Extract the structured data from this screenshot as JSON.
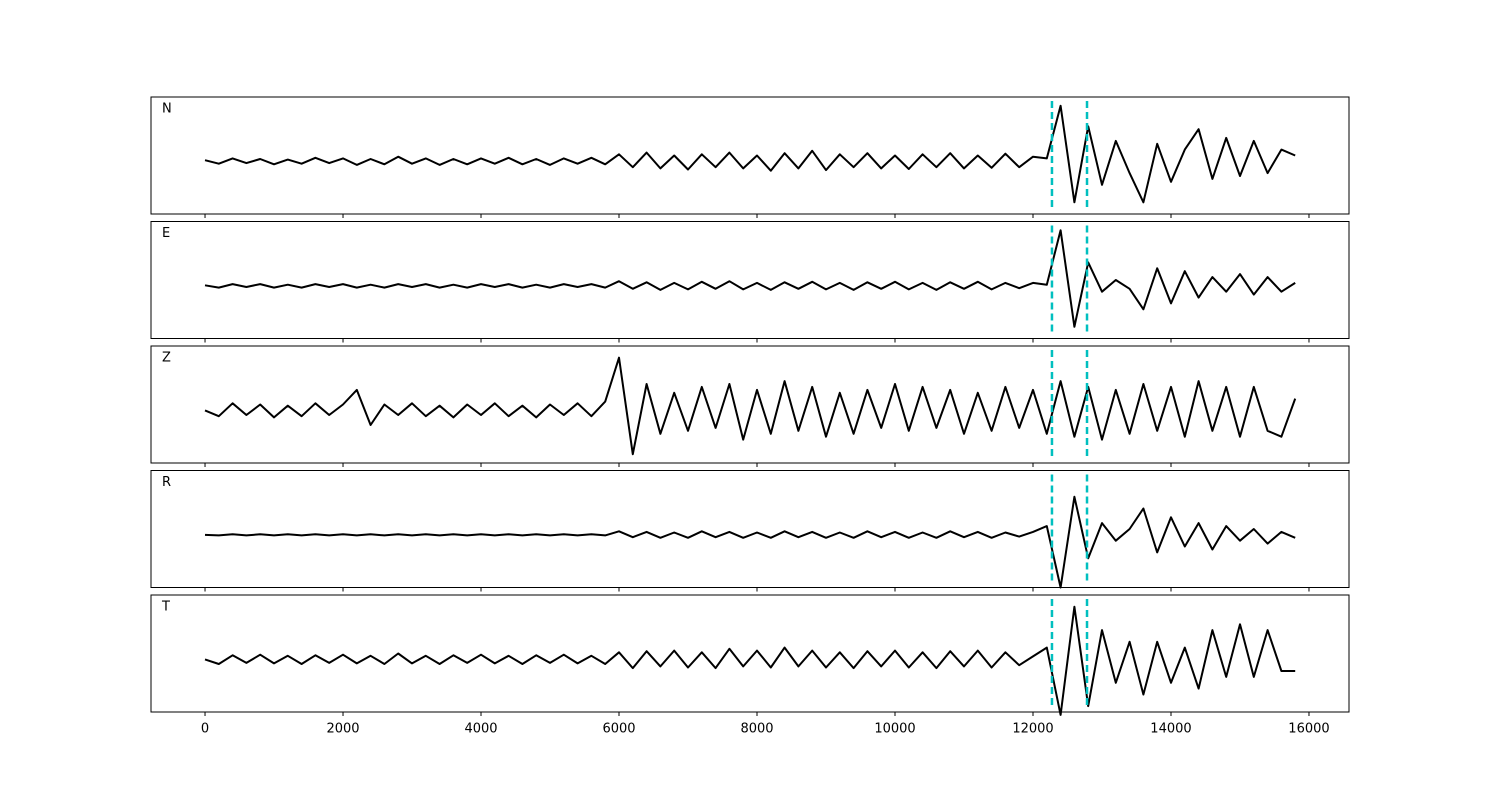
{
  "chart_data": {
    "type": "line",
    "x": [
      0,
      200,
      400,
      600,
      800,
      1000,
      1200,
      1400,
      1600,
      1800,
      2000,
      2200,
      2400,
      2600,
      2800,
      3000,
      3200,
      3400,
      3600,
      3800,
      4000,
      4200,
      4400,
      4600,
      4800,
      5000,
      5200,
      5400,
      5600,
      5800,
      6000,
      6200,
      6400,
      6600,
      6800,
      7000,
      7200,
      7400,
      7600,
      7800,
      8000,
      8200,
      8400,
      8600,
      8800,
      9000,
      9200,
      9400,
      9600,
      9800,
      10000,
      10200,
      10400,
      10600,
      10800,
      11000,
      11200,
      11400,
      11600,
      11800,
      12000,
      12200,
      12400,
      12600,
      12800,
      13000,
      13200,
      13400,
      13600,
      13800,
      14000,
      14200,
      14400,
      14600,
      14800,
      15000,
      15200,
      15400,
      15600,
      15800
    ],
    "series": [
      {
        "name": "N",
        "color": "#000000",
        "values": [
          0.02,
          -0.04,
          0.05,
          -0.03,
          0.04,
          -0.05,
          0.03,
          -0.04,
          0.06,
          -0.03,
          0.05,
          -0.06,
          0.04,
          -0.05,
          0.08,
          -0.04,
          0.05,
          -0.06,
          0.04,
          -0.05,
          0.05,
          -0.04,
          0.06,
          -0.05,
          0.04,
          -0.06,
          0.05,
          -0.04,
          0.06,
          -0.05,
          0.12,
          -0.1,
          0.15,
          -0.12,
          0.1,
          -0.14,
          0.12,
          -0.1,
          0.15,
          -0.12,
          0.1,
          -0.16,
          0.14,
          -0.12,
          0.18,
          -0.15,
          0.12,
          -0.1,
          0.14,
          -0.12,
          0.1,
          -0.13,
          0.12,
          -0.1,
          0.14,
          -0.12,
          0.1,
          -0.11,
          0.13,
          -0.1,
          0.08,
          0.05,
          0.95,
          -0.7,
          0.6,
          -0.4,
          0.35,
          -0.2,
          -0.7,
          0.3,
          -0.35,
          0.2,
          0.55,
          -0.3,
          0.4,
          -0.25,
          0.35,
          -0.2,
          0.2,
          0.1
        ]
      },
      {
        "name": "E",
        "color": "#000000",
        "values": [
          0.01,
          -0.03,
          0.03,
          -0.02,
          0.03,
          -0.03,
          0.02,
          -0.03,
          0.03,
          -0.02,
          0.03,
          -0.03,
          0.02,
          -0.03,
          0.03,
          -0.02,
          0.03,
          -0.03,
          0.02,
          -0.03,
          0.03,
          -0.02,
          0.03,
          -0.03,
          0.02,
          -0.03,
          0.03,
          -0.02,
          0.03,
          -0.03,
          0.08,
          -0.05,
          0.06,
          -0.07,
          0.05,
          -0.06,
          0.07,
          -0.05,
          0.08,
          -0.06,
          0.05,
          -0.07,
          0.06,
          -0.05,
          0.07,
          -0.06,
          0.05,
          -0.07,
          0.06,
          -0.05,
          0.07,
          -0.06,
          0.05,
          -0.07,
          0.06,
          -0.05,
          0.07,
          -0.06,
          0.05,
          -0.04,
          0.05,
          0.02,
          0.95,
          -0.7,
          0.4,
          -0.1,
          0.1,
          -0.05,
          -0.4,
          0.3,
          -0.3,
          0.25,
          -0.2,
          0.15,
          -0.1,
          0.2,
          -0.15,
          0.15,
          -0.1,
          0.05
        ]
      },
      {
        "name": "Z",
        "color": "#000000",
        "values": [
          0.0,
          -0.1,
          0.12,
          -0.08,
          0.1,
          -0.12,
          0.08,
          -0.1,
          0.12,
          -0.08,
          0.1,
          0.35,
          -0.25,
          0.1,
          -0.08,
          0.12,
          -0.1,
          0.08,
          -0.12,
          0.1,
          -0.08,
          0.12,
          -0.1,
          0.08,
          -0.12,
          0.1,
          -0.08,
          0.12,
          -0.1,
          0.15,
          0.9,
          -0.75,
          0.45,
          -0.4,
          0.3,
          -0.35,
          0.4,
          -0.3,
          0.45,
          -0.5,
          0.35,
          -0.4,
          0.5,
          -0.35,
          0.4,
          -0.45,
          0.3,
          -0.4,
          0.35,
          -0.3,
          0.45,
          -0.35,
          0.4,
          -0.3,
          0.35,
          -0.4,
          0.3,
          -0.35,
          0.4,
          -0.3,
          0.35,
          -0.4,
          0.5,
          -0.45,
          0.4,
          -0.5,
          0.35,
          -0.4,
          0.45,
          -0.35,
          0.4,
          -0.45,
          0.5,
          -0.35,
          0.4,
          -0.45,
          0.4,
          -0.35,
          -0.45,
          0.2
        ]
      },
      {
        "name": "R",
        "color": "#000000",
        "values": [
          0.0,
          -0.01,
          0.01,
          -0.01,
          0.01,
          -0.01,
          0.01,
          -0.01,
          0.01,
          -0.01,
          0.01,
          -0.01,
          0.01,
          -0.01,
          0.01,
          -0.01,
          0.01,
          -0.01,
          0.01,
          -0.01,
          0.01,
          -0.01,
          0.01,
          -0.01,
          0.01,
          -0.01,
          0.01,
          -0.01,
          0.01,
          -0.01,
          0.06,
          -0.04,
          0.05,
          -0.05,
          0.04,
          -0.05,
          0.06,
          -0.04,
          0.05,
          -0.05,
          0.04,
          -0.05,
          0.06,
          -0.04,
          0.05,
          -0.05,
          0.04,
          -0.05,
          0.06,
          -0.04,
          0.05,
          -0.05,
          0.04,
          -0.05,
          0.06,
          -0.04,
          0.05,
          -0.05,
          0.04,
          -0.03,
          0.05,
          0.15,
          -0.9,
          0.65,
          -0.4,
          0.2,
          -0.1,
          0.1,
          0.45,
          -0.3,
          0.3,
          -0.2,
          0.2,
          -0.25,
          0.15,
          -0.1,
          0.1,
          -0.15,
          0.05,
          -0.05
        ]
      },
      {
        "name": "T",
        "color": "#000000",
        "values": [
          0.0,
          -0.08,
          0.07,
          -0.06,
          0.08,
          -0.07,
          0.06,
          -0.08,
          0.07,
          -0.06,
          0.08,
          -0.07,
          0.06,
          -0.08,
          0.1,
          -0.07,
          0.06,
          -0.08,
          0.07,
          -0.06,
          0.08,
          -0.07,
          0.06,
          -0.08,
          0.07,
          -0.06,
          0.08,
          -0.07,
          0.06,
          -0.08,
          0.12,
          -0.15,
          0.14,
          -0.12,
          0.15,
          -0.14,
          0.12,
          -0.15,
          0.18,
          -0.12,
          0.15,
          -0.14,
          0.2,
          -0.12,
          0.15,
          -0.14,
          0.12,
          -0.15,
          0.14,
          -0.12,
          0.15,
          -0.14,
          0.12,
          -0.15,
          0.14,
          -0.12,
          0.15,
          -0.14,
          0.12,
          -0.1,
          0.05,
          0.2,
          -0.95,
          0.9,
          -0.8,
          0.5,
          -0.4,
          0.3,
          -0.6,
          0.3,
          -0.4,
          0.2,
          -0.5,
          0.5,
          -0.3,
          0.6,
          -0.3,
          0.5,
          -0.2,
          -0.2
        ]
      }
    ],
    "xlim": [
      -783,
      16580
    ],
    "xticks": [
      0,
      2000,
      4000,
      6000,
      8000,
      10000,
      12000,
      14000,
      16000
    ],
    "ylim": [
      -0.9,
      1.1
    ],
    "vlines": [
      12275,
      12783
    ],
    "vline_color": "#00bfbf"
  }
}
